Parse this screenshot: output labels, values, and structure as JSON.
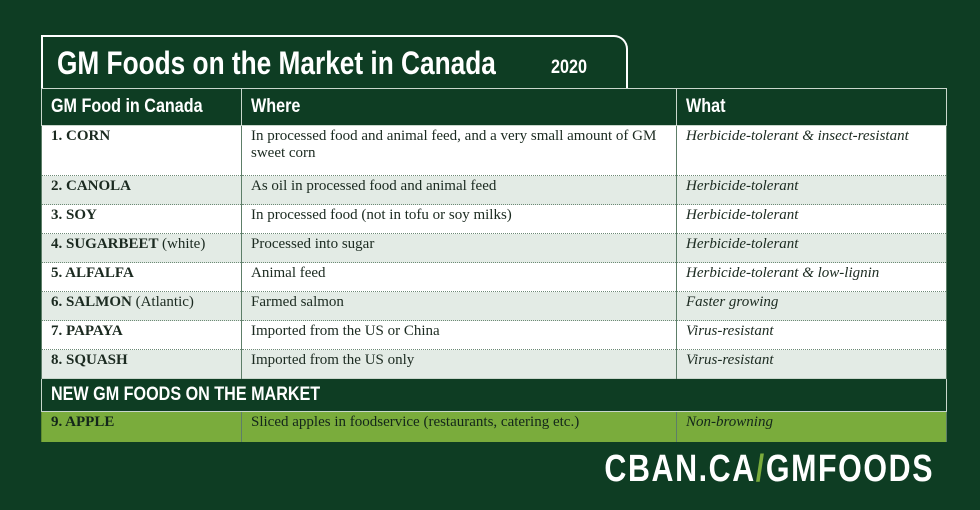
{
  "header": {
    "title": "GM Foods on the Market in Canada",
    "year": "2020"
  },
  "table": {
    "columns": [
      "GM Food in Canada",
      "Where",
      "What"
    ],
    "rows": [
      {
        "name": "1. CORN",
        "where": "In processed food and animal feed, and a very small amount of GM sweet corn",
        "what": "Herbicide-tolerant & insect-resistant"
      },
      {
        "name": "2. CANOLA",
        "where": "As oil in processed food and animal feed",
        "what": "Herbicide-tolerant"
      },
      {
        "name": "3. SOY",
        "where": "In processed food (not in tofu or soy milks)",
        "what": "Herbicide-tolerant"
      },
      {
        "name": "4. SUGARBEET",
        "note": "(white)",
        "where": "Processed into sugar",
        "what": "Herbicide-tolerant"
      },
      {
        "name": "5. ALFALFA",
        "where": "Animal feed",
        "what": "Herbicide-tolerant & low-lignin"
      },
      {
        "name": "6. SALMON",
        "note": "(Atlantic)",
        "where": "Farmed salmon",
        "what": "Faster growing"
      },
      {
        "name": "7. PAPAYA",
        "where": "Imported from the US or China",
        "what": "Virus-resistant"
      },
      {
        "name": "8. SQUASH",
        "where": "Imported from the US only",
        "what": "Virus-resistant"
      }
    ]
  },
  "section": {
    "title": "NEW GM FOODS ON THE MARKET",
    "rows": [
      {
        "name": "9. APPLE",
        "where": "Sliced apples in foodservice (restaurants, catering etc.)",
        "what": "Non-browning"
      }
    ]
  },
  "footer": {
    "site": "CBAN.CA",
    "slash": "/",
    "path": "GMFOODS"
  }
}
